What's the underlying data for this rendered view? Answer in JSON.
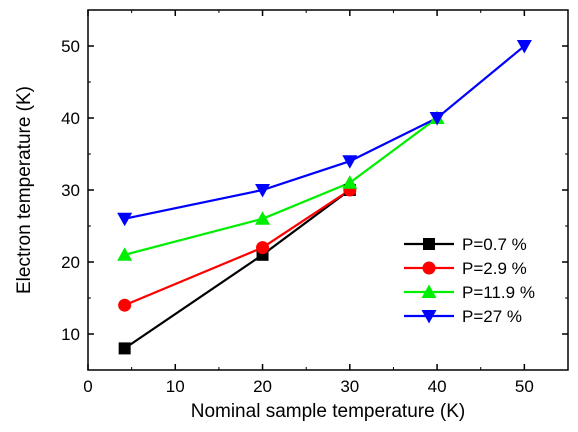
{
  "chart_data": {
    "type": "line",
    "title": "",
    "xlabel": "Nominal sample temperature (K)",
    "ylabel": "Electron temperature (K)",
    "xlim": [
      0,
      55
    ],
    "ylim": [
      5,
      55
    ],
    "xticks": [
      0,
      10,
      20,
      30,
      40,
      50
    ],
    "yticks": [
      10,
      20,
      30,
      40,
      50
    ],
    "grid": false,
    "legend_position": "bottom-right",
    "series": [
      {
        "name": "P=0.7 %",
        "color": "#000000",
        "marker": "square",
        "x": [
          4.2,
          20,
          30
        ],
        "y": [
          8,
          21,
          30
        ]
      },
      {
        "name": "P=2.9 %",
        "color": "#ff0000",
        "marker": "circle",
        "x": [
          4.2,
          20,
          30
        ],
        "y": [
          14,
          22,
          30
        ]
      },
      {
        "name": "P=11.9 %",
        "color": "#00ee00",
        "marker": "triangle-up",
        "x": [
          4.2,
          20,
          30,
          40
        ],
        "y": [
          21,
          26,
          31,
          40
        ]
      },
      {
        "name": "P=27 %",
        "color": "#0000ff",
        "marker": "triangle-down",
        "x": [
          4.2,
          20,
          30,
          40,
          50
        ],
        "y": [
          26,
          30,
          34,
          40,
          50
        ]
      }
    ]
  }
}
